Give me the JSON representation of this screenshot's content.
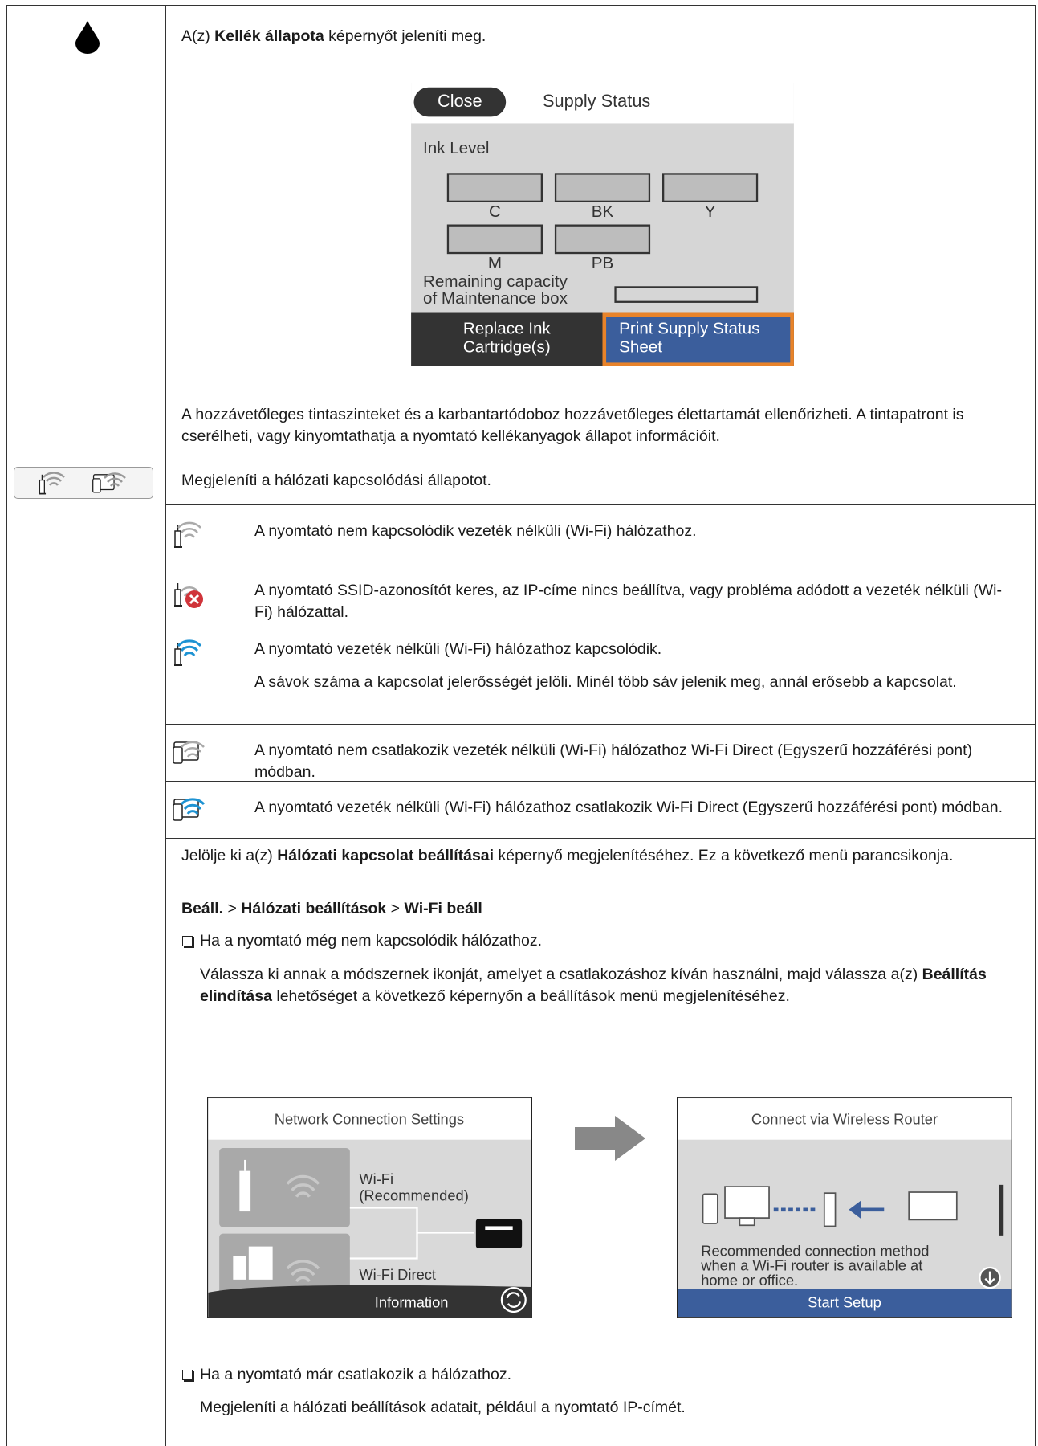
{
  "supply": {
    "intro": [
      "A(z) ",
      "Kellék állapota",
      " képernyőt jeleníti meg."
    ],
    "screen": {
      "close": "Close",
      "title": "Supply Status",
      "ink_level": "Ink Level",
      "colors": [
        "C",
        "BK",
        "Y",
        "M",
        "PB"
      ],
      "maintenance": [
        "Remaining capacity",
        "of Maintenance box"
      ],
      "buttons": [
        [
          "Replace Ink",
          "Cartridge(s)"
        ],
        [
          "Print Supply Status",
          "Sheet"
        ]
      ]
    },
    "description": "A hozzávetőleges tintaszinteket és a karbantartódoboz hozzávetőleges élettartamát ellenőrizheti. A tintapatront is cserélheti, vagy kinyomtathatja a nyomtató kellékanyagok állapot információit."
  },
  "network": {
    "intro": "Megjeleníti a hálózati kapcsolódási állapotot.",
    "statuses": [
      [
        "A nyomtató nem kapcsolódik vezeték nélküli (Wi-Fi) hálózathoz."
      ],
      [
        "A nyomtató SSID-azonosítót keres, az IP-címe nincs beállítva, vagy probléma adódott a vezeték nélküli (Wi-Fi) hálózattal."
      ],
      [
        "A nyomtató vezeték nélküli (Wi-Fi) hálózathoz kapcsolódik.",
        "A sávok száma a kapcsolat jelerősségét jelöli. Minél több sáv jelenik meg, annál erősebb a kapcsolat."
      ],
      [
        "A nyomtató nem csatlakozik vezeték nélküli (Wi-Fi) hálózathoz Wi-Fi Direct (Egyszerű hozzáférési pont) módban."
      ],
      [
        "A nyomtató vezeték nélküli (Wi-Fi) hálózathoz csatlakozik Wi-Fi Direct (Egyszerű hozzáférési pont) módban."
      ]
    ],
    "select": [
      "Jelölje ki a(z) ",
      "Hálózati kapcsolat beállításai",
      " képernyő megjelenítéséhez. Ez a következő menü parancsikonja."
    ],
    "path": [
      "Beáll.",
      " > ",
      "Hálózati beállítások",
      " > ",
      "Wi-Fi beáll"
    ],
    "bullets": [
      {
        "text": "Ha a nyomtató még nem kapcsolódik hálózathoz.",
        "detail": [
          "Válassza ki annak a módszernek ikonját, amelyet a csatlakozáshoz kíván használni, majd válassza a(z) ",
          "Beállítás elindítása",
          " lehetőséget a következő képernyőn a beállítások menü megjelenítéséhez."
        ]
      },
      {
        "text": "Ha a nyomtató már csatlakozik a hálózathoz.",
        "detail": [
          "Megjeleníti a hálózati beállítások adatait, például a nyomtató IP-címét."
        ]
      }
    ],
    "connection_screen": {
      "title": "Network Connection Settings",
      "wifi": [
        "Wi-Fi",
        "(Recommended)"
      ],
      "wifi_direct": "Wi-Fi Direct",
      "information": "Information"
    },
    "router_screen": {
      "title": "Connect via Wireless Router",
      "description": [
        "Recommended connection method",
        "when a Wi-Fi router is available at",
        "home or office."
      ],
      "button": "Start Setup"
    }
  }
}
